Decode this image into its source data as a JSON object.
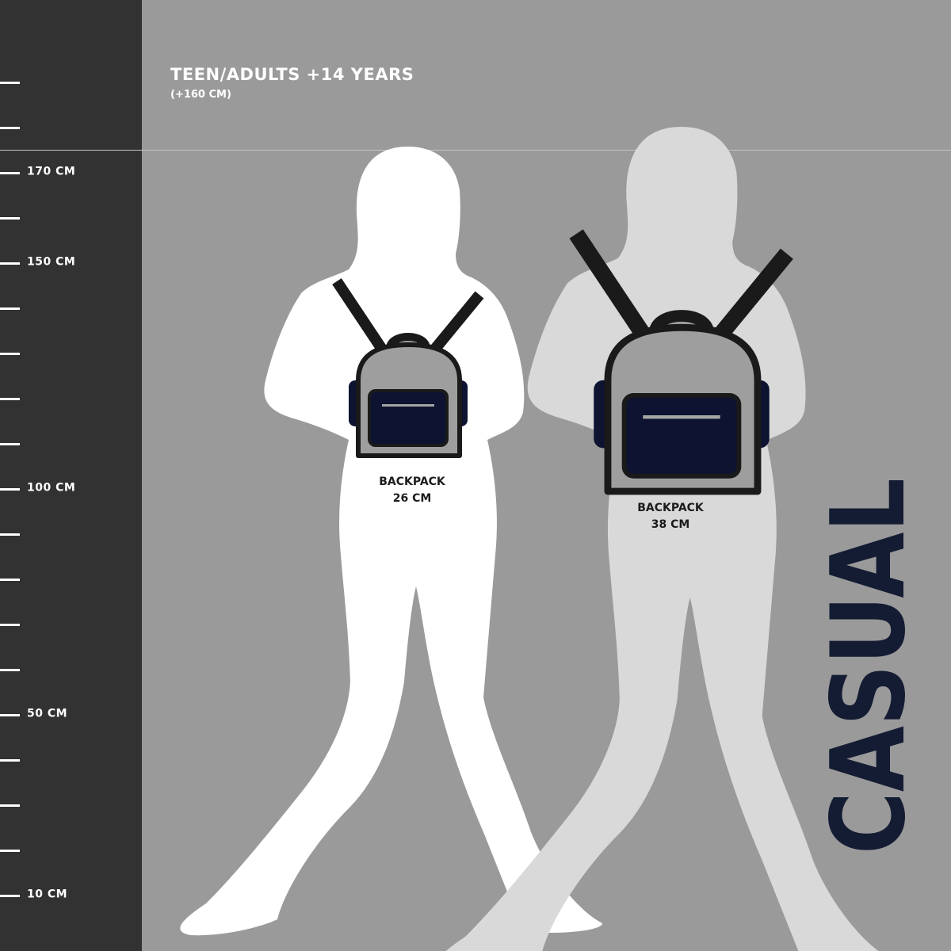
{
  "header": {
    "title": "TEEN/ADULTS +14 YEARS",
    "subtitle": "(+160 CM)"
  },
  "ruler": {
    "ticks": [
      "",
      "",
      "170 CM",
      "",
      "150 CM",
      "",
      "",
      "",
      "",
      "100 CM",
      "",
      "",
      "",
      "",
      "50 CM",
      "",
      "",
      "",
      "10 CM"
    ]
  },
  "figures": [
    {
      "label_line1": "BACKPACK",
      "label_line2": "26 CM",
      "color": "#ffffff"
    },
    {
      "label_line1": "BACKPACK",
      "label_line2": "38 CM",
      "color": "#d9d9d9"
    }
  ],
  "brand_word": "CASUAL",
  "colors": {
    "strip": "#323232",
    "background": "#9a9a9a",
    "navy": "#141c33",
    "backpack_body": "#9e9e9e",
    "pocket": "#0d1330"
  }
}
